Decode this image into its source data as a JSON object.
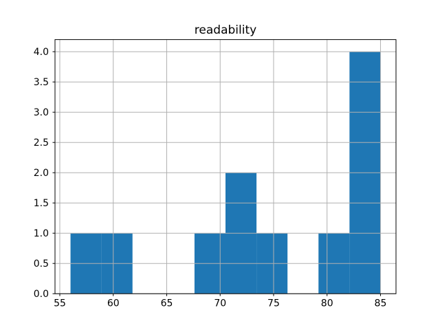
{
  "figure": {
    "background": "#ffffff",
    "bar_color": "#1f77b4",
    "grid_color": "#b0b0b0",
    "spine_color": "#000000",
    "text_color": "#000000"
  },
  "chart_data": {
    "type": "bar",
    "subtype": "histogram",
    "title": "readability",
    "xlabel": "",
    "ylabel": "",
    "bin_edges": [
      56.0,
      58.9,
      61.8,
      64.7,
      67.6,
      70.5,
      73.4,
      76.3,
      79.2,
      82.1,
      85.0
    ],
    "counts": [
      1,
      1,
      0,
      0,
      1,
      2,
      1,
      0,
      1,
      4
    ],
    "xticks": [
      55,
      60,
      65,
      70,
      75,
      80,
      85
    ],
    "xtick_labels": [
      "55",
      "60",
      "65",
      "70",
      "75",
      "80",
      "85"
    ],
    "yticks": [
      0.0,
      0.5,
      1.0,
      1.5,
      2.0,
      2.5,
      3.0,
      3.5,
      4.0
    ],
    "ytick_labels": [
      "0.0",
      "0.5",
      "1.0",
      "1.5",
      "2.0",
      "2.5",
      "3.0",
      "3.5",
      "4.0"
    ],
    "xlim": [
      54.55,
      86.45
    ],
    "ylim": [
      0,
      4.2
    ],
    "grid": true,
    "grid_above_bars": true,
    "legend": null
  }
}
